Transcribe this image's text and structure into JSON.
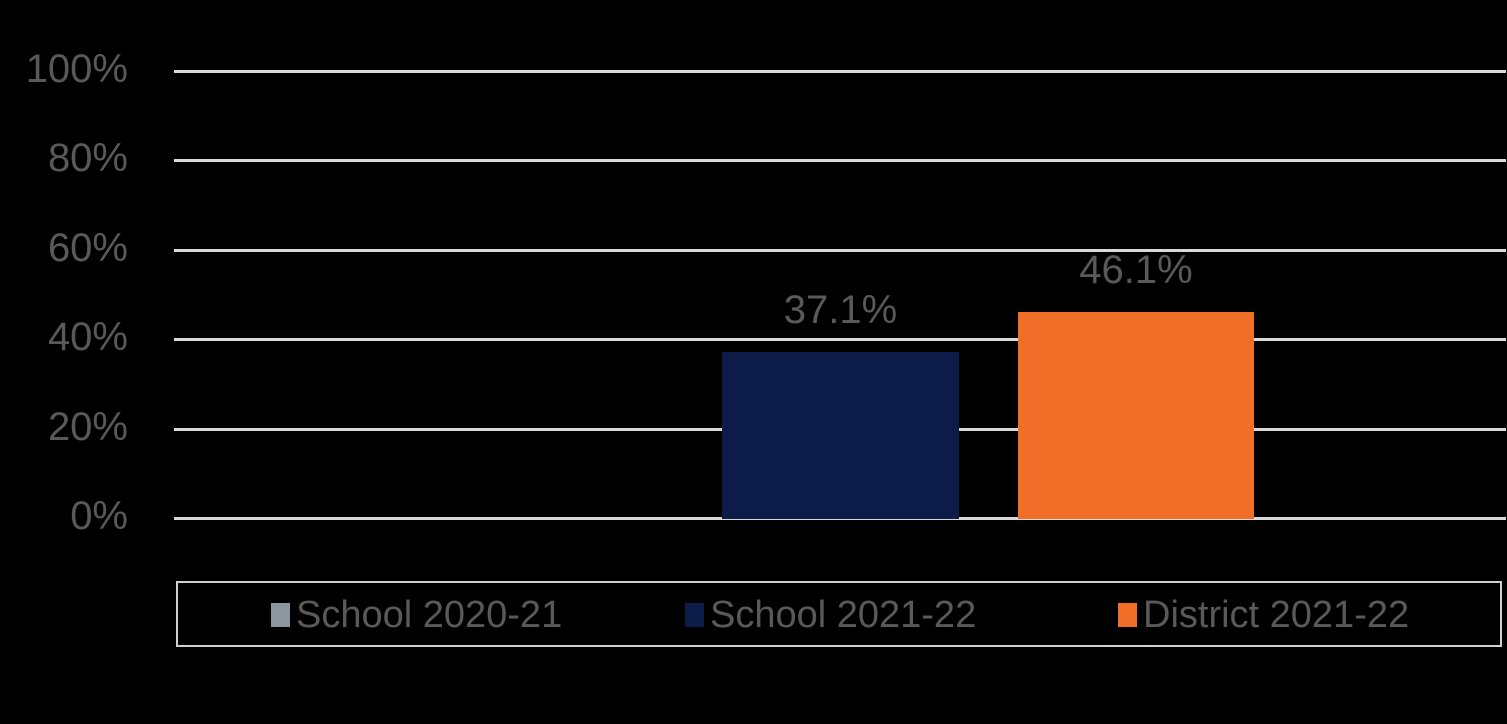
{
  "chart_data": {
    "type": "bar",
    "title": "",
    "xlabel": "",
    "ylabel": "",
    "ylim": [
      0,
      100
    ],
    "yticks": [
      "0%",
      "20%",
      "40%",
      "60%",
      "80%",
      "100%"
    ],
    "grid": true,
    "legend_position": "bottom",
    "categories": [
      ""
    ],
    "series": [
      {
        "name": "School 2020-21",
        "values": [
          null
        ],
        "color": "#8c96a0"
      },
      {
        "name": "School 2021-22",
        "values": [
          37.1
        ],
        "label": "37.1%",
        "color": "#0d1b48"
      },
      {
        "name": "District 2021-22",
        "values": [
          46.1
        ],
        "label": "46.1%",
        "color": "#f06e27"
      }
    ]
  }
}
